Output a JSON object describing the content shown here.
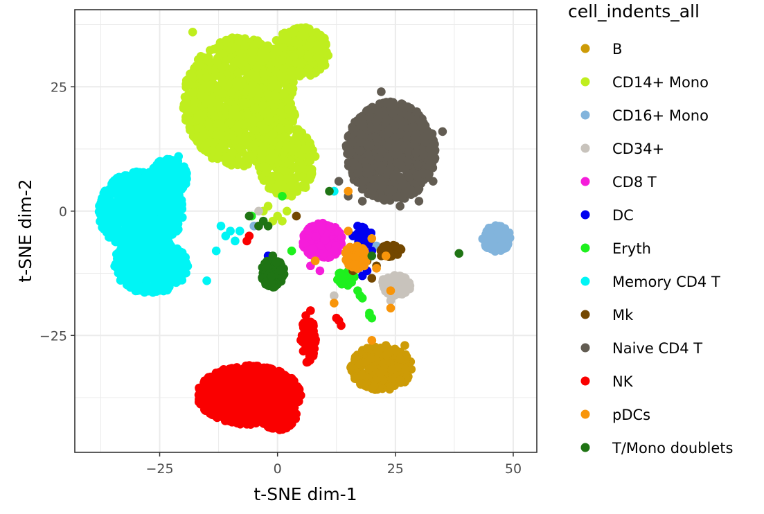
{
  "chart_data": {
    "type": "scatter",
    "title": "",
    "xlabel": "t-SNE dim-1",
    "ylabel": "t-SNE dim-2",
    "xlim": [
      -43,
      55
    ],
    "ylim": [
      -48.5,
      40.5
    ],
    "x_ticks": [
      -25,
      0,
      25,
      50
    ],
    "x_tick_labels": [
      "−25",
      "0",
      "25",
      "50"
    ],
    "y_ticks": [
      25,
      0,
      -25
    ],
    "y_tick_labels": [
      "25",
      "0",
      "−25"
    ],
    "grid": true,
    "legend_position": "right",
    "legend_title": "cell_indents_all",
    "series": [
      {
        "name": "B",
        "color": "#CD9B06",
        "clusters": [
          {
            "cx": 22,
            "cy": -31.5,
            "rx": 6.5,
            "ry": 4.5,
            "n": 320
          }
        ],
        "extra_points": [
          [
            20,
            -26
          ],
          [
            23,
            -27
          ],
          [
            25,
            -28
          ],
          [
            27,
            -27
          ],
          [
            18,
            -33
          ],
          [
            26,
            -34
          ]
        ]
      },
      {
        "name": "CD14+ Mono",
        "color": "#BFEE1E",
        "clusters": [
          {
            "cx": -8,
            "cy": 22,
            "rx": 12,
            "ry": 13,
            "n": 1100
          },
          {
            "cx": 2,
            "cy": 10,
            "rx": 6,
            "ry": 7,
            "n": 250
          },
          {
            "cx": 5,
            "cy": 32,
            "rx": 6,
            "ry": 5,
            "n": 250
          }
        ],
        "extra_points": [
          [
            -18,
            36
          ],
          [
            -2,
            1
          ],
          [
            0,
            -1
          ],
          [
            -1,
            -2
          ],
          [
            1,
            -2
          ],
          [
            2,
            0
          ],
          [
            -3,
            0
          ],
          [
            3,
            3
          ],
          [
            -17,
            14
          ],
          [
            -16,
            15
          ],
          [
            8,
            11
          ]
        ]
      },
      {
        "name": "CD16+ Mono",
        "color": "#82B4DC",
        "clusters": [
          {
            "cx": 46.5,
            "cy": -5.5,
            "rx": 3,
            "ry": 2.6,
            "n": 160
          }
        ],
        "extra_points": [
          [
            21,
            -7
          ],
          [
            -5,
            -3
          ],
          [
            12,
            4
          ]
        ]
      },
      {
        "name": "CD34+",
        "color": "#C8C3BC",
        "clusters": [
          {
            "cx": 25,
            "cy": -15,
            "rx": 3.2,
            "ry": 2.2,
            "n": 110
          }
        ],
        "extra_points": [
          [
            12,
            -17
          ],
          [
            24,
            -18
          ],
          [
            -4,
            0
          ]
        ]
      },
      {
        "name": "CD8 T",
        "color": "#F51DDA",
        "clusters": [
          {
            "cx": 9.5,
            "cy": -6,
            "rx": 4.2,
            "ry": 3.6,
            "n": 260
          }
        ],
        "extra_points": [
          [
            9,
            -12
          ],
          [
            7,
            -11
          ],
          [
            12,
            -8
          ],
          [
            -4,
            -3
          ]
        ]
      },
      {
        "name": "DC",
        "color": "#0000F0",
        "clusters": [
          {
            "cx": 18.5,
            "cy": -5,
            "rx": 1.6,
            "ry": 2.2,
            "n": 35
          }
        ],
        "extra_points": [
          [
            -2,
            -9
          ],
          [
            17,
            -3
          ],
          [
            19,
            -12
          ],
          [
            18,
            -7
          ],
          [
            20,
            -8
          ],
          [
            16,
            -5
          ],
          [
            18,
            -13
          ]
        ]
      },
      {
        "name": "Eryth",
        "color": "#1EF01E",
        "clusters": [
          {
            "cx": 14.5,
            "cy": -13.5,
            "rx": 1.8,
            "ry": 1.6,
            "n": 40
          }
        ],
        "extra_points": [
          [
            17,
            -16
          ],
          [
            17.5,
            -17
          ],
          [
            18,
            -17.5
          ],
          [
            19.5,
            -20.5
          ],
          [
            20,
            -21.5
          ],
          [
            19.5,
            -21
          ],
          [
            16,
            -11
          ],
          [
            3,
            -8
          ],
          [
            -5.5,
            -1
          ],
          [
            1,
            3
          ]
        ]
      },
      {
        "name": "Memory CD4 T",
        "color": "#00F5F5",
        "clusters": [
          {
            "cx": -29,
            "cy": 0,
            "rx": 9,
            "ry": 8,
            "n": 800
          },
          {
            "cx": -27,
            "cy": -11,
            "rx": 8,
            "ry": 5.5,
            "n": 450
          },
          {
            "cx": -23,
            "cy": 7,
            "rx": 4,
            "ry": 3.5,
            "n": 200
          }
        ],
        "extra_points": [
          [
            -10,
            -4
          ],
          [
            -12,
            -3
          ],
          [
            -11,
            -5
          ],
          [
            -9,
            -6
          ],
          [
            -13,
            -8
          ],
          [
            -8,
            -4
          ],
          [
            12,
            4
          ],
          [
            -15,
            -14
          ],
          [
            -21,
            11
          ]
        ]
      },
      {
        "name": "Mk",
        "color": "#734700",
        "clusters": [
          {
            "cx": 24,
            "cy": -8,
            "rx": 2.5,
            "ry": 1.2,
            "n": 25
          }
        ],
        "extra_points": [
          [
            4,
            -1
          ],
          [
            16,
            -12
          ],
          [
            20,
            -13.5
          ],
          [
            21,
            -11
          ],
          [
            19,
            -10
          ],
          [
            22,
            -9
          ],
          [
            25,
            -7
          ],
          [
            26,
            -7.5
          ]
        ]
      },
      {
        "name": "Naive CD4 T",
        "color": "#625C52",
        "clusters": [
          {
            "cx": 24,
            "cy": 12,
            "rx": 9.5,
            "ry": 10,
            "n": 950
          }
        ],
        "extra_points": [
          [
            22,
            24
          ],
          [
            15,
            3
          ],
          [
            18,
            2
          ],
          [
            13,
            6
          ],
          [
            33,
            6
          ],
          [
            30,
            2
          ],
          [
            26,
            1
          ],
          [
            35,
            16
          ]
        ]
      },
      {
        "name": "NK",
        "color": "#FA0000",
        "clusters": [
          {
            "cx": -6,
            "cy": -37,
            "rx": 11,
            "ry": 6,
            "n": 900
          },
          {
            "cx": 0,
            "cy": -41,
            "rx": 4,
            "ry": 3,
            "n": 200
          },
          {
            "cx": 6.5,
            "cy": -26,
            "rx": 1.6,
            "ry": 4.5,
            "n": 70
          }
        ],
        "extra_points": [
          [
            13,
            -22
          ],
          [
            13.5,
            -23
          ],
          [
            12.5,
            -21.5
          ],
          [
            -6.5,
            -6
          ],
          [
            -6,
            -5
          ],
          [
            7,
            -20
          ],
          [
            6,
            -21
          ]
        ]
      },
      {
        "name": "pDCs",
        "color": "#F8950A",
        "clusters": [
          {
            "cx": 16.5,
            "cy": -9.5,
            "rx": 2.4,
            "ry": 2.6,
            "n": 55
          }
        ],
        "extra_points": [
          [
            12,
            -18.5
          ],
          [
            20,
            -5.5
          ],
          [
            20,
            -26
          ],
          [
            24,
            -16
          ],
          [
            24,
            -19.5
          ],
          [
            21,
            -11.5
          ],
          [
            15,
            -4
          ],
          [
            15,
            4
          ],
          [
            8,
            -10
          ],
          [
            23,
            -9
          ]
        ]
      },
      {
        "name": "T/Mono doublets",
        "color": "#1F7414",
        "clusters": [
          {
            "cx": -1,
            "cy": -12.5,
            "rx": 2.5,
            "ry": 2.8,
            "n": 110
          }
        ],
        "extra_points": [
          [
            -1,
            -9
          ],
          [
            -6,
            -1
          ],
          [
            -4,
            -3
          ],
          [
            -3,
            -2
          ],
          [
            -2,
            -3
          ],
          [
            11,
            4
          ],
          [
            38.5,
            -8.5
          ],
          [
            20,
            -9
          ]
        ]
      }
    ]
  }
}
